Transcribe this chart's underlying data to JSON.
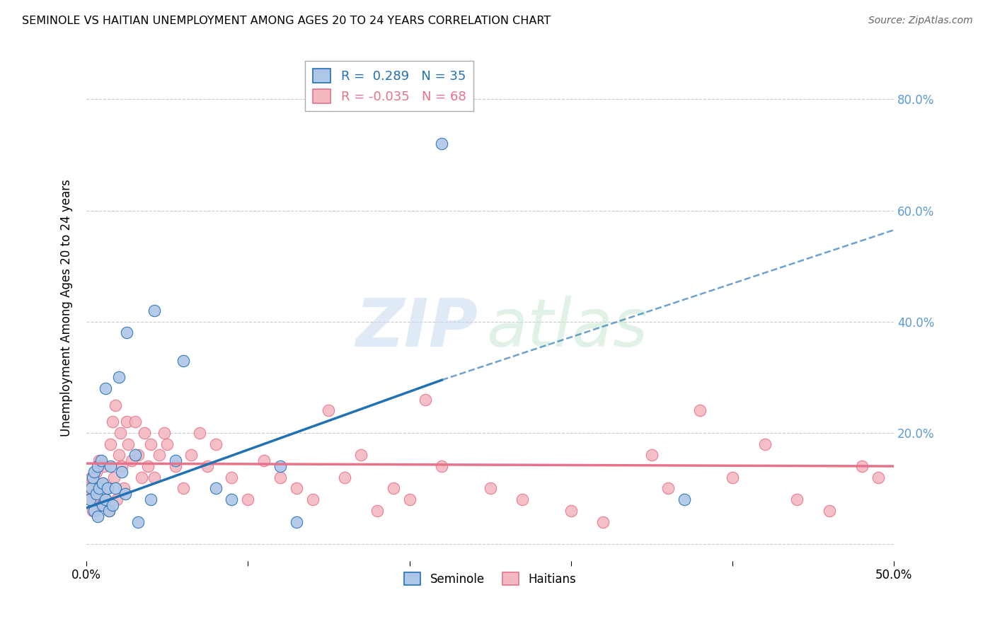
{
  "title": "SEMINOLE VS HAITIAN UNEMPLOYMENT AMONG AGES 20 TO 24 YEARS CORRELATION CHART",
  "source": "Source: ZipAtlas.com",
  "ylabel": "Unemployment Among Ages 20 to 24 years",
  "xmin": 0.0,
  "xmax": 0.5,
  "ymin": -0.03,
  "ymax": 0.88,
  "yticks": [
    0.0,
    0.2,
    0.4,
    0.6,
    0.8
  ],
  "ytick_labels": [
    "",
    "20.0%",
    "40.0%",
    "60.0%",
    "80.0%"
  ],
  "xticks": [
    0.0,
    0.1,
    0.2,
    0.3,
    0.4,
    0.5
  ],
  "xtick_labels": [
    "0.0%",
    "",
    "",
    "",
    "",
    "50.0%"
  ],
  "legend_seminole_R": "0.289",
  "legend_seminole_N": "35",
  "legend_haitian_R": "-0.035",
  "legend_haitian_N": "68",
  "seminole_color": "#aec6e8",
  "haitian_color": "#f4b8c1",
  "seminole_line_color": "#2171b5",
  "haitian_line_color": "#e8728a",
  "seminole_x": [
    0.002,
    0.003,
    0.004,
    0.005,
    0.005,
    0.006,
    0.007,
    0.007,
    0.008,
    0.009,
    0.01,
    0.01,
    0.012,
    0.012,
    0.013,
    0.014,
    0.015,
    0.016,
    0.018,
    0.02,
    0.022,
    0.024,
    0.025,
    0.03,
    0.032,
    0.04,
    0.042,
    0.055,
    0.06,
    0.08,
    0.09,
    0.12,
    0.13,
    0.22,
    0.37
  ],
  "seminole_y": [
    0.08,
    0.1,
    0.12,
    0.06,
    0.13,
    0.09,
    0.14,
    0.05,
    0.1,
    0.15,
    0.07,
    0.11,
    0.08,
    0.28,
    0.1,
    0.06,
    0.14,
    0.07,
    0.1,
    0.3,
    0.13,
    0.09,
    0.38,
    0.16,
    0.04,
    0.08,
    0.42,
    0.15,
    0.33,
    0.1,
    0.08,
    0.14,
    0.04,
    0.72,
    0.08
  ],
  "haitian_x": [
    0.001,
    0.002,
    0.003,
    0.004,
    0.005,
    0.006,
    0.008,
    0.009,
    0.01,
    0.011,
    0.012,
    0.013,
    0.014,
    0.015,
    0.016,
    0.017,
    0.018,
    0.019,
    0.02,
    0.021,
    0.022,
    0.023,
    0.025,
    0.026,
    0.028,
    0.03,
    0.032,
    0.034,
    0.036,
    0.038,
    0.04,
    0.042,
    0.045,
    0.048,
    0.05,
    0.055,
    0.06,
    0.065,
    0.07,
    0.075,
    0.08,
    0.09,
    0.1,
    0.11,
    0.12,
    0.13,
    0.14,
    0.15,
    0.16,
    0.17,
    0.18,
    0.19,
    0.2,
    0.21,
    0.22,
    0.25,
    0.27,
    0.3,
    0.32,
    0.35,
    0.36,
    0.38,
    0.4,
    0.42,
    0.44,
    0.46,
    0.48,
    0.49
  ],
  "haitian_y": [
    0.1,
    0.08,
    0.12,
    0.06,
    0.09,
    0.13,
    0.15,
    0.07,
    0.11,
    0.14,
    0.08,
    0.1,
    0.06,
    0.18,
    0.22,
    0.12,
    0.25,
    0.08,
    0.16,
    0.2,
    0.14,
    0.1,
    0.22,
    0.18,
    0.15,
    0.22,
    0.16,
    0.12,
    0.2,
    0.14,
    0.18,
    0.12,
    0.16,
    0.2,
    0.18,
    0.14,
    0.1,
    0.16,
    0.2,
    0.14,
    0.18,
    0.12,
    0.08,
    0.15,
    0.12,
    0.1,
    0.08,
    0.24,
    0.12,
    0.16,
    0.06,
    0.1,
    0.08,
    0.26,
    0.14,
    0.1,
    0.08,
    0.06,
    0.04,
    0.16,
    0.1,
    0.24,
    0.12,
    0.18,
    0.08,
    0.06,
    0.14,
    0.12
  ],
  "sem_line_x0": 0.0,
  "sem_line_x_solid_end": 0.22,
  "sem_line_x1": 0.5,
  "sem_line_y0": 0.065,
  "sem_line_y_solid_end": 0.295,
  "sem_line_y1": 0.565,
  "hai_line_x0": 0.0,
  "hai_line_x1": 0.5,
  "hai_line_y0": 0.145,
  "hai_line_y1": 0.14
}
